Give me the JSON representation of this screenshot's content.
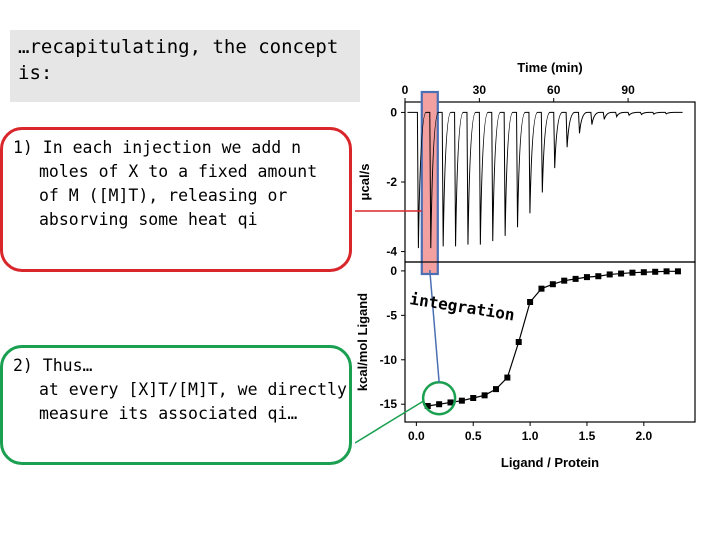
{
  "slide": {
    "title": "…recapitulating, the concept\nis:",
    "box1_lines": [
      "1) In each injection we add n",
      "moles of X to a fixed amount",
      "of M ([M]T), releasing or",
      "absorving some heat qi"
    ],
    "box2_lines": [
      "2) Thus…",
      "at every [X]T/[M]T, we directly",
      "measure its associated qi…"
    ],
    "integration_label": "integration",
    "colors": {
      "red": "#d9262b",
      "green": "#1aa050",
      "blue": "#4a6fb3",
      "highlight": "#f3a0a0"
    }
  },
  "chart_data": [
    {
      "type": "line",
      "title": "",
      "xlabel": "Time (min)",
      "ylabel": "μcal/s",
      "x_ticks": [
        0,
        30,
        60,
        90
      ],
      "y_ticks": [
        0,
        -2,
        -4
      ],
      "xlim": [
        0,
        117
      ],
      "ylim": [
        -4.3,
        0.3
      ],
      "peaks": {
        "times": [
          5,
          10,
          15,
          20,
          25,
          30,
          35,
          40,
          45,
          50,
          55,
          60,
          65,
          70,
          75,
          80,
          85,
          90,
          95,
          100,
          105
        ],
        "depths": [
          -3.9,
          -3.9,
          -3.85,
          -3.85,
          -3.8,
          -3.8,
          -3.7,
          -3.55,
          -3.3,
          -2.9,
          -2.3,
          -1.6,
          -1.0,
          -0.6,
          -0.35,
          -0.2,
          -0.12,
          -0.08,
          -0.06,
          -0.05,
          -0.04
        ]
      }
    },
    {
      "type": "scatter",
      "title": "",
      "xlabel": "Ligand / Protein",
      "ylabel": "kcal/mol Ligand",
      "x_ticks": [
        "0.0",
        "0.5",
        "1.0",
        "1.5",
        "2.0"
      ],
      "y_ticks": [
        "0",
        "-5",
        "-10",
        "-15"
      ],
      "xlim": [
        -0.1,
        2.45
      ],
      "ylim": [
        -17,
        1
      ],
      "points": {
        "x": [
          0.1,
          0.2,
          0.3,
          0.4,
          0.5,
          0.6,
          0.7,
          0.8,
          0.9,
          1.0,
          1.1,
          1.2,
          1.3,
          1.4,
          1.5,
          1.6,
          1.7,
          1.8,
          1.9,
          2.0,
          2.1,
          2.2,
          2.3
        ],
        "y": [
          -15.2,
          -15.0,
          -14.8,
          -14.6,
          -14.3,
          -14.0,
          -13.3,
          -12.0,
          -8.0,
          -3.5,
          -2.0,
          -1.5,
          -1.1,
          -0.9,
          -0.7,
          -0.6,
          -0.4,
          -0.3,
          -0.2,
          -0.15,
          -0.1,
          -0.05,
          -0.05
        ]
      }
    }
  ]
}
